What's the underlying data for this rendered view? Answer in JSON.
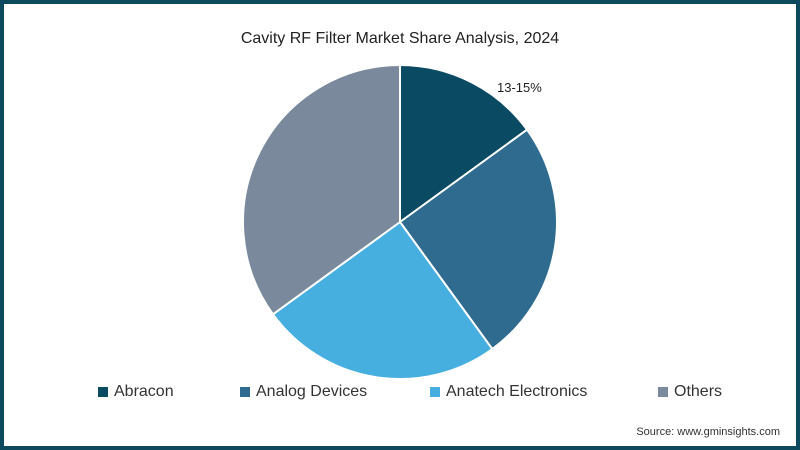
{
  "chart_data": {
    "type": "pie",
    "title": "Cavity RF Filter Market Share Analysis, 2024",
    "categories": [
      "Abracon",
      "Analog Devices",
      "Anatech Electronics",
      "Others"
    ],
    "values": [
      15,
      25,
      25,
      35
    ],
    "colors": [
      "#0b4a63",
      "#2f6b8f",
      "#47aee0",
      "#7a8a9c"
    ],
    "annotations": [
      {
        "slice": "Abracon",
        "text": "13-15%"
      }
    ],
    "legend_position": "bottom",
    "source": "Source: www.gminsights.com"
  },
  "title": "Cavity RF Filter Market Share Analysis, 2024",
  "label": "13-15%",
  "legend": [
    {
      "label": "Abracon",
      "color": "#0b4a63"
    },
    {
      "label": "Analog Devices",
      "color": "#2f6b8f"
    },
    {
      "label": "Anatech Electronics",
      "color": "#47aee0"
    },
    {
      "label": "Others",
      "color": "#7a8a9c"
    }
  ],
  "source": "Source: www.gminsights.com"
}
